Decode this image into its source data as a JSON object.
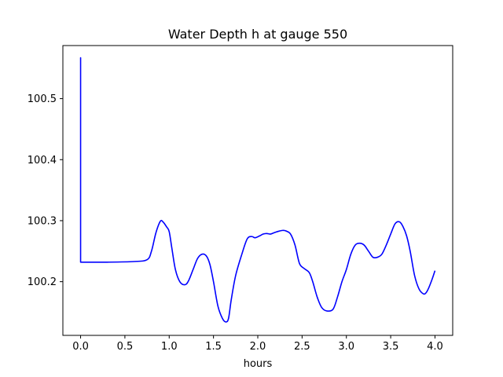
{
  "chart_data": {
    "type": "line",
    "title": "Water Depth h at gauge 550",
    "xlabel": "hours",
    "ylabel": "",
    "xlim": [
      -0.2,
      4.2
    ],
    "ylim": [
      100.112,
      100.587
    ],
    "xticks": [
      0.0,
      0.5,
      1.0,
      1.5,
      2.0,
      2.5,
      3.0,
      3.5,
      4.0
    ],
    "xtick_labels": [
      "0.0",
      "0.5",
      "1.0",
      "1.5",
      "2.0",
      "2.5",
      "3.0",
      "3.5",
      "4.0"
    ],
    "yticks": [
      100.2,
      100.3,
      100.4,
      100.5
    ],
    "ytick_labels": [
      "100.2",
      "100.3",
      "100.4",
      "100.5"
    ],
    "grid": false,
    "series": [
      {
        "color": "#0000ff",
        "x": [
          0.0,
          0.0,
          0.0,
          0.3,
          0.6,
          0.75,
          0.8,
          0.85,
          0.9,
          0.93,
          0.97,
          1.0,
          1.03,
          1.07,
          1.12,
          1.18,
          1.22,
          1.27,
          1.32,
          1.37,
          1.42,
          1.46,
          1.5,
          1.55,
          1.6,
          1.64,
          1.67,
          1.7,
          1.75,
          1.82,
          1.88,
          1.93,
          1.97,
          2.02,
          2.06,
          2.1,
          2.14,
          2.18,
          2.22,
          2.28,
          2.32,
          2.37,
          2.42,
          2.47,
          2.52,
          2.58,
          2.62,
          2.67,
          2.72,
          2.78,
          2.85,
          2.9,
          2.95,
          3.0,
          3.05,
          3.1,
          3.15,
          3.2,
          3.25,
          3.3,
          3.35,
          3.4,
          3.45,
          3.5,
          3.55,
          3.6,
          3.64,
          3.68,
          3.72,
          3.77,
          3.82,
          3.87,
          3.9,
          3.93,
          3.97,
          4.0
        ],
        "values": [
          100.232,
          100.567,
          100.232,
          100.232,
          100.233,
          100.236,
          100.25,
          100.28,
          100.299,
          100.298,
          100.29,
          100.282,
          100.255,
          100.22,
          100.2,
          100.195,
          100.202,
          100.22,
          100.238,
          100.245,
          100.242,
          100.228,
          100.2,
          100.16,
          100.14,
          100.134,
          100.14,
          100.17,
          100.21,
          100.245,
          100.27,
          100.274,
          100.272,
          100.275,
          100.278,
          100.279,
          100.278,
          100.28,
          100.282,
          100.284,
          100.283,
          100.278,
          100.26,
          100.23,
          100.222,
          100.215,
          100.2,
          100.175,
          100.158,
          100.152,
          100.155,
          100.175,
          100.2,
          100.22,
          100.245,
          100.26,
          100.263,
          100.26,
          100.25,
          100.24,
          100.24,
          100.245,
          100.26,
          100.278,
          100.295,
          100.298,
          100.29,
          100.275,
          100.25,
          100.21,
          100.188,
          100.18,
          100.182,
          100.19,
          100.205,
          100.218
        ]
      }
    ]
  }
}
